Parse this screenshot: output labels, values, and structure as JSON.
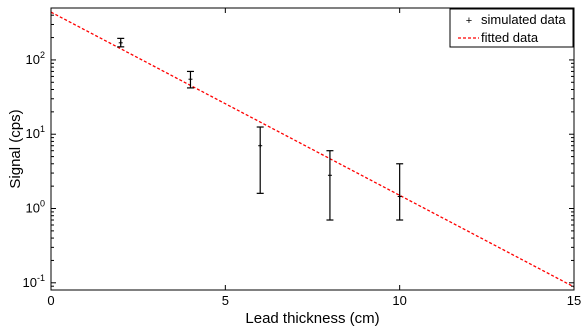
{
  "chart_data": {
    "type": "scatter",
    "title": "",
    "xlabel": "Lead thickness (cm)",
    "ylabel": "Signal (cps)",
    "xlim": [
      0,
      15
    ],
    "ylim": [
      0.08,
      500
    ],
    "yscale": "log",
    "grid": false,
    "legend_position": "top-right",
    "x_ticks": [
      {
        "value": 0,
        "label": "0"
      },
      {
        "value": 5,
        "label": "5"
      },
      {
        "value": 10,
        "label": "10"
      },
      {
        "value": 15,
        "label": "15"
      }
    ],
    "y_ticks": [
      {
        "value": 0.1,
        "base": "10",
        "exp": "-1"
      },
      {
        "value": 1,
        "base": "10",
        "exp": "0"
      },
      {
        "value": 10,
        "base": "10",
        "exp": "1"
      },
      {
        "value": 100,
        "base": "10",
        "exp": "2"
      }
    ],
    "series": [
      {
        "name": "simulated data",
        "style": "points with error bars",
        "color": "#000000",
        "points": [
          {
            "x": 2,
            "y": 170,
            "ylow": 150,
            "yhigh": 195
          },
          {
            "x": 4,
            "y": 55,
            "ylow": 42,
            "yhigh": 70
          },
          {
            "x": 6,
            "y": 7,
            "ylow": 1.6,
            "yhigh": 12.5
          },
          {
            "x": 8,
            "y": 2.8,
            "ylow": 0.7,
            "yhigh": 6.0
          },
          {
            "x": 10,
            "y": 1.45,
            "ylow": 0.7,
            "yhigh": 4.0
          }
        ]
      },
      {
        "name": "fitted data",
        "style": "dashed line",
        "color": "#ff0000",
        "points": [
          {
            "x": 0,
            "y": 440
          },
          {
            "x": 15,
            "y": 0.088
          }
        ]
      }
    ]
  }
}
